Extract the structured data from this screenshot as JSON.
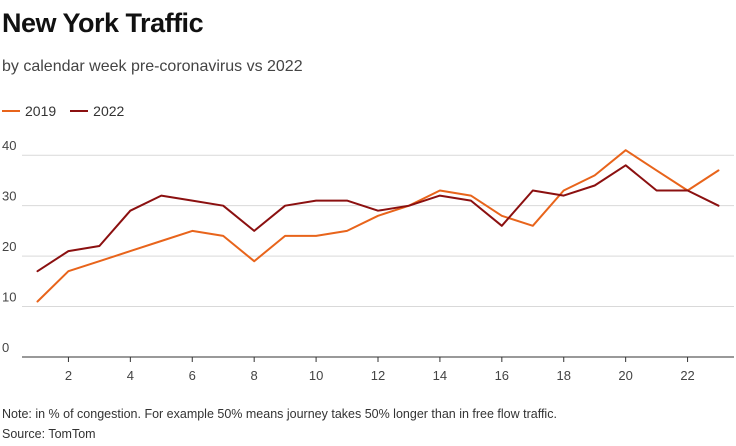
{
  "header": {
    "title": "New York Traffic",
    "subtitle": "by calendar week pre-coronavirus vs 2022"
  },
  "footer": {
    "note": "Note: in % of congestion. For example 50% means journey takes 50% longer than in free flow traffic.",
    "source": "Source: TomTom"
  },
  "chart_data": {
    "type": "line",
    "title": "New York Traffic",
    "subtitle": "by calendar week pre-coronavirus vs 2022",
    "xlabel": "",
    "ylabel": "",
    "x": [
      1,
      2,
      3,
      4,
      5,
      6,
      7,
      8,
      9,
      10,
      11,
      12,
      13,
      14,
      15,
      16,
      17,
      18,
      19,
      20,
      21,
      22,
      23
    ],
    "xticks": [
      2,
      4,
      6,
      8,
      10,
      12,
      14,
      16,
      18,
      20,
      22
    ],
    "yticks": [
      0,
      10,
      20,
      30,
      40
    ],
    "xlim": [
      0.5,
      23.5
    ],
    "ylim": [
      0,
      45
    ],
    "grid": "horizontal",
    "legend": "top-left",
    "series": [
      {
        "name": "2019",
        "color": "#e8641b",
        "values": [
          11,
          17,
          19,
          21,
          23,
          25,
          24,
          19,
          24,
          24,
          25,
          28,
          30,
          33,
          32,
          28,
          26,
          33,
          36,
          41,
          37,
          33,
          37
        ]
      },
      {
        "name": "2022",
        "color": "#8b1010",
        "values": [
          17,
          21,
          22,
          29,
          32,
          31,
          30,
          25,
          30,
          31,
          31,
          29,
          30,
          32,
          31,
          26,
          33,
          32,
          34,
          38,
          33,
          33,
          30
        ]
      }
    ]
  }
}
